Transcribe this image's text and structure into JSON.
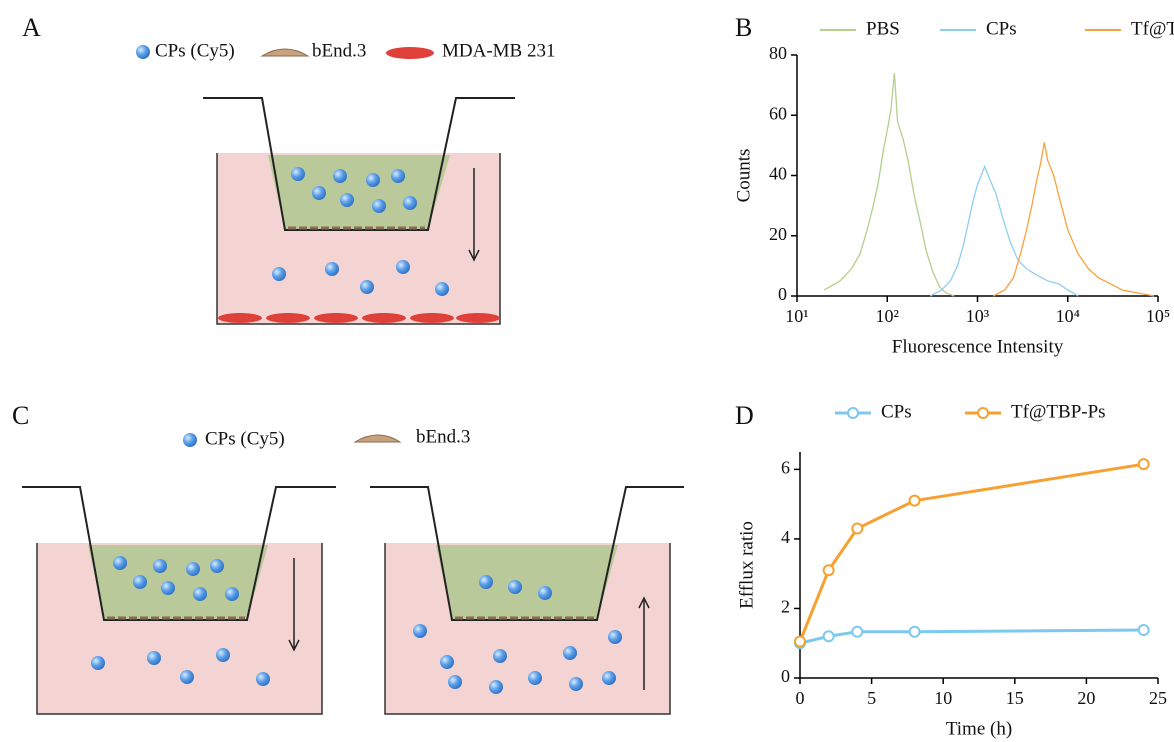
{
  "panel_labels": [
    "A",
    "B",
    "C",
    "D"
  ],
  "diagram_a": {
    "legend": [
      "CPs (Cy5)",
      "bEnd.3",
      "MDA-MB 231"
    ]
  },
  "diagram_c": {
    "legend": [
      "CPs (Cy5)",
      "bEnd.3"
    ]
  },
  "chart_data": [
    {
      "type": "line",
      "xscale": "log",
      "xlabel": "Fluorescence Intensity",
      "ylabel": "Counts",
      "xlim": [
        10,
        100000
      ],
      "xticks": [
        {
          "value": 10,
          "label": "10¹"
        },
        {
          "value": 100,
          "label": "10²"
        },
        {
          "value": 1000,
          "label": "10³"
        },
        {
          "value": 10000,
          "label": "10⁴"
        },
        {
          "value": 100000,
          "label": "10⁵"
        }
      ],
      "ylim": [
        0,
        80
      ],
      "yticks": [
        0,
        20,
        40,
        60,
        80
      ],
      "legend": "top",
      "markers": false,
      "series": [
        {
          "name": "PBS",
          "color": "#b5cf8a",
          "x": [
            20,
            30,
            40,
            50,
            60,
            70,
            80,
            90,
            100,
            110,
            120,
            130,
            150,
            170,
            200,
            230,
            270,
            320,
            380,
            450,
            550
          ],
          "values": [
            2,
            5,
            9,
            14,
            22,
            30,
            38,
            48,
            55,
            62,
            74,
            58,
            52,
            45,
            33,
            25,
            15,
            8,
            3,
            1,
            0
          ]
        },
        {
          "name": "CPs",
          "color": "#8ecdf3",
          "x": [
            300,
            400,
            500,
            600,
            700,
            800,
            900,
            1000,
            1100,
            1200,
            1400,
            1600,
            1900,
            2300,
            2800,
            3500,
            4500,
            6000,
            8000,
            10000,
            13000
          ],
          "values": [
            0,
            2,
            5,
            10,
            17,
            25,
            32,
            37,
            40,
            43,
            38,
            34,
            26,
            18,
            12,
            9,
            7,
            5,
            4,
            2,
            0
          ]
        },
        {
          "name": "Tf@TBP-CPs",
          "color": "#f7a23c",
          "x": [
            1500,
            2000,
            2500,
            3000,
            3500,
            4000,
            4500,
            5000,
            5500,
            6000,
            7000,
            8000,
            10000,
            13000,
            17000,
            22000,
            30000,
            40000,
            60000,
            90000
          ],
          "values": [
            0,
            2,
            6,
            14,
            22,
            30,
            38,
            44,
            51,
            45,
            40,
            33,
            22,
            14,
            9,
            6,
            4,
            2,
            1,
            0
          ]
        }
      ]
    },
    {
      "type": "line",
      "xlabel": "Time (h)",
      "ylabel": "Efflux ratio",
      "x": [
        0,
        2,
        4,
        8,
        24
      ],
      "xlim": [
        0,
        25
      ],
      "xticks": [
        0,
        5,
        10,
        15,
        20,
        25
      ],
      "ylim": [
        0,
        6.5
      ],
      "yticks": [
        0,
        2,
        4,
        6
      ],
      "legend": "top",
      "markers": true,
      "series": [
        {
          "name": "CPs",
          "color": "#7cc8ee",
          "values": [
            1.0,
            1.2,
            1.33,
            1.33,
            1.38
          ]
        },
        {
          "name": "Tf@TBP-Ps",
          "color": "#f7a030",
          "values": [
            1.05,
            3.1,
            4.3,
            5.1,
            6.15
          ]
        }
      ]
    }
  ]
}
